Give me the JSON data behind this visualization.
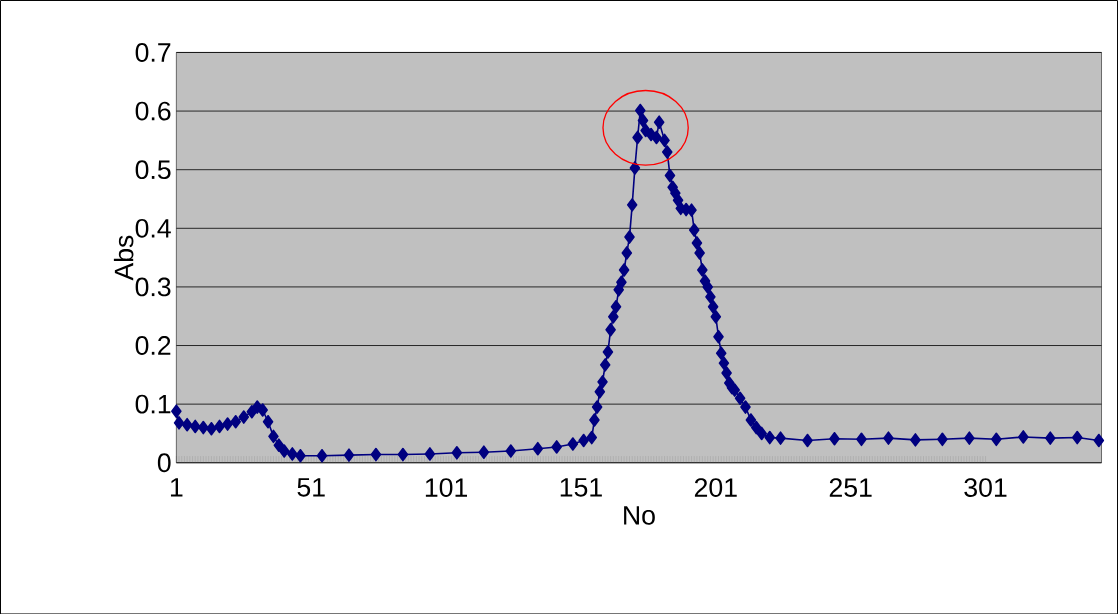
{
  "chart_data": {
    "type": "line",
    "xlabel": "No",
    "ylabel": "Abs",
    "x": [
      1,
      2,
      5,
      8,
      11,
      14,
      17,
      20,
      23,
      26,
      29,
      31,
      33,
      35,
      37,
      39,
      41,
      44,
      47,
      55,
      65,
      75,
      85,
      95,
      105,
      115,
      125,
      135,
      142,
      148,
      152,
      155,
      156,
      157,
      158,
      159,
      160,
      161,
      162,
      163,
      164,
      165,
      166,
      167,
      168,
      169,
      170,
      171,
      172,
      173,
      174,
      175,
      177,
      179,
      180,
      182,
      183,
      184,
      185,
      186,
      187,
      188,
      190,
      192,
      193,
      194,
      195,
      196,
      197,
      198,
      199,
      200,
      201,
      202,
      203,
      204,
      205,
      206,
      207,
      208,
      210,
      212,
      214,
      216,
      218,
      221,
      225,
      235,
      245,
      255,
      265,
      275,
      285,
      295,
      305,
      315,
      325,
      335,
      343
    ],
    "series": [
      {
        "color": "#000080",
        "values": [
          0.088,
          0.068,
          0.065,
          0.062,
          0.06,
          0.058,
          0.062,
          0.066,
          0.07,
          0.078,
          0.087,
          0.095,
          0.09,
          0.07,
          0.045,
          0.03,
          0.02,
          0.015,
          0.012,
          0.012,
          0.013,
          0.014,
          0.014,
          0.015,
          0.017,
          0.018,
          0.02,
          0.024,
          0.027,
          0.032,
          0.038,
          0.043,
          0.073,
          0.095,
          0.121,
          0.138,
          0.167,
          0.189,
          0.227,
          0.249,
          0.266,
          0.295,
          0.308,
          0.329,
          0.358,
          0.385,
          0.44,
          0.503,
          0.555,
          0.601,
          0.584,
          0.567,
          0.56,
          0.555,
          0.581,
          0.55,
          0.53,
          0.49,
          0.47,
          0.46,
          0.448,
          0.434,
          0.432,
          0.431,
          0.397,
          0.375,
          0.358,
          0.329,
          0.31,
          0.3,
          0.283,
          0.266,
          0.249,
          0.215,
          0.187,
          0.17,
          0.153,
          0.136,
          0.128,
          0.124,
          0.11,
          0.095,
          0.073,
          0.06,
          0.05,
          0.043,
          0.042,
          0.038,
          0.041,
          0.04,
          0.042,
          0.039,
          0.04,
          0.042,
          0.04,
          0.044,
          0.042,
          0.043,
          0.038
        ]
      }
    ],
    "xlim": [
      1,
      344
    ],
    "xticks": [
      1,
      51,
      101,
      151,
      201,
      251,
      301
    ],
    "ylim": [
      0,
      0.7
    ],
    "yticks": [
      0,
      0.1,
      0.2,
      0.3,
      0.4,
      0.5,
      0.6,
      0.7
    ],
    "grid": "y",
    "marker": "diamond",
    "line_style": "solid"
  }
}
